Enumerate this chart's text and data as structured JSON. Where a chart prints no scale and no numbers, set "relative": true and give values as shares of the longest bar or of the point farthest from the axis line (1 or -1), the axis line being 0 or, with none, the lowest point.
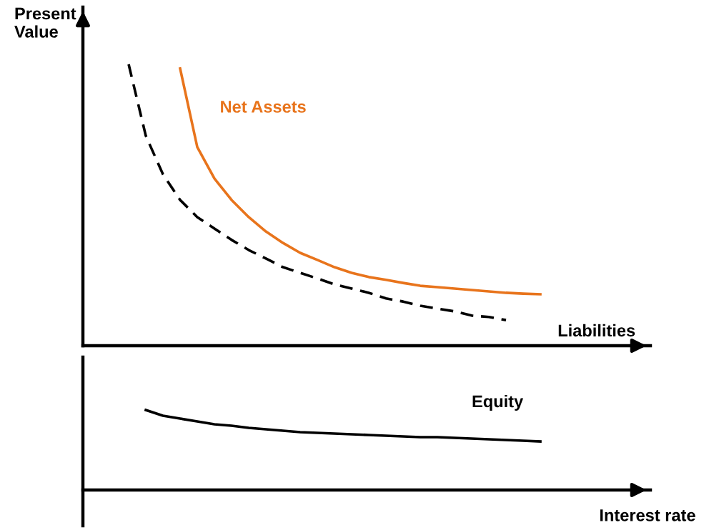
{
  "chart_data": [
    {
      "type": "line",
      "ylabel": "Present Value",
      "relative": true,
      "tick_labels": false,
      "legend": false,
      "categories": [
        null,
        null,
        null,
        null,
        null,
        null,
        null,
        null,
        null,
        null,
        null,
        null,
        null,
        null,
        null,
        null,
        null,
        null,
        null,
        null,
        null,
        null,
        null,
        null,
        null
      ],
      "series": [
        {
          "name": "Net Assets",
          "color": "#e8741c",
          "line_style": "solid",
          "values": [
            null,
            null,
            null,
            0.985,
            0.706,
            0.594,
            0.518,
            0.457,
            0.406,
            0.365,
            0.33,
            0.305,
            0.279,
            0.259,
            0.244,
            0.234,
            0.223,
            0.213,
            0.208,
            0.203,
            0.198,
            0.193,
            0.188,
            0.185,
            0.183
          ]
        },
        {
          "name": "Liabilities",
          "color": "#000000",
          "line_style": "dashed",
          "values": [
            1.0,
            0.746,
            0.609,
            0.518,
            0.457,
            0.416,
            0.376,
            0.34,
            0.31,
            0.279,
            0.259,
            0.239,
            0.218,
            0.203,
            0.188,
            0.168,
            0.157,
            0.142,
            0.132,
            0.122,
            0.107,
            0.102,
            0.091,
            null,
            null
          ]
        }
      ]
    },
    {
      "type": "line",
      "xlabel": "Interest rate",
      "relative": true,
      "tick_labels": false,
      "legend": false,
      "categories": [
        null,
        null,
        null,
        null,
        null,
        null,
        null,
        null,
        null,
        null,
        null,
        null,
        null,
        null,
        null,
        null,
        null,
        null,
        null,
        null,
        null,
        null,
        null,
        null,
        null
      ],
      "series": [
        {
          "name": "Equity",
          "color": "#000000",
          "line_style": "solid",
          "values": [
            null,
            1.0,
            0.929,
            0.893,
            0.857,
            0.821,
            0.804,
            0.777,
            0.759,
            0.741,
            0.723,
            0.714,
            0.705,
            0.696,
            0.688,
            0.679,
            0.67,
            0.661,
            0.661,
            0.652,
            0.643,
            0.634,
            0.625,
            0.616,
            0.607
          ]
        }
      ]
    }
  ]
}
